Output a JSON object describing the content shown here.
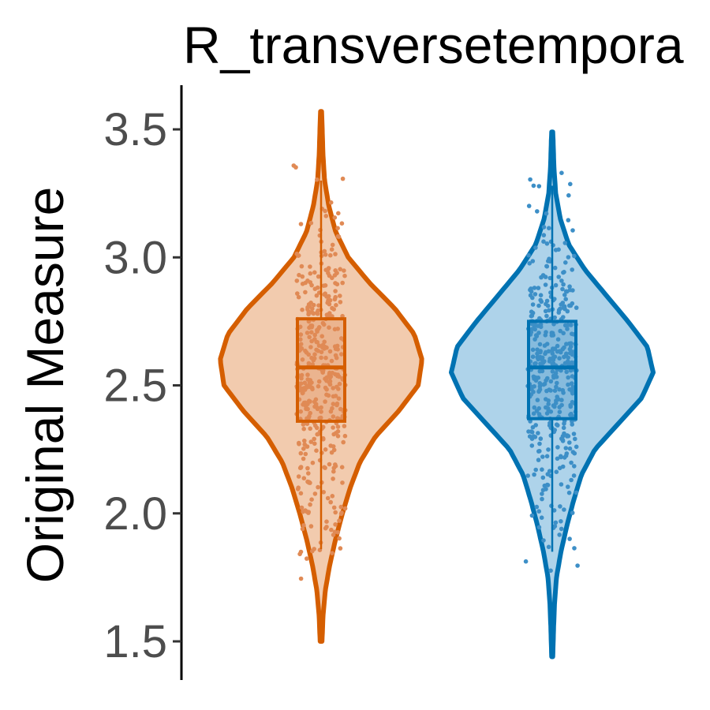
{
  "chart_data": {
    "type": "violin",
    "title": "R_transversetempora",
    "ylabel": "Original Measure",
    "xlabel": "",
    "ylim": [
      1.35,
      3.67
    ],
    "yticks": [
      1.5,
      2.0,
      2.5,
      3.0,
      3.5
    ],
    "ytick_labels": [
      "1.5",
      "2.0",
      "2.5",
      "3.0",
      "3.5"
    ],
    "grid": false,
    "legend": "none",
    "series": [
      {
        "color": "#D55E00",
        "fill": "#F2CBAE",
        "points_color": "#E08A55",
        "min": 1.5,
        "max": 3.57,
        "q1": 2.36,
        "median": 2.57,
        "q3": 2.76,
        "whisker_low": 1.86,
        "whisker_high": 3.3,
        "density": [
          [
            1.5,
            0.005
          ],
          [
            1.6,
            0.01
          ],
          [
            1.7,
            0.022
          ],
          [
            1.8,
            0.045
          ],
          [
            1.9,
            0.075
          ],
          [
            2.0,
            0.11
          ],
          [
            2.1,
            0.15
          ],
          [
            2.2,
            0.2
          ],
          [
            2.3,
            0.28
          ],
          [
            2.4,
            0.4
          ],
          [
            2.5,
            0.5
          ],
          [
            2.6,
            0.52
          ],
          [
            2.7,
            0.48
          ],
          [
            2.8,
            0.38
          ],
          [
            2.9,
            0.25
          ],
          [
            3.0,
            0.14
          ],
          [
            3.1,
            0.075
          ],
          [
            3.2,
            0.04
          ],
          [
            3.3,
            0.018
          ],
          [
            3.4,
            0.01
          ],
          [
            3.5,
            0.006
          ],
          [
            3.57,
            0.003
          ]
        ]
      },
      {
        "color": "#0072B2",
        "fill": "#AED3EA",
        "points_color": "#3D8FC7",
        "min": 1.44,
        "max": 3.49,
        "q1": 2.37,
        "median": 2.57,
        "q3": 2.75,
        "whisker_low": 1.85,
        "whisker_high": 3.28,
        "density": [
          [
            1.44,
            0.003
          ],
          [
            1.55,
            0.007
          ],
          [
            1.65,
            0.012
          ],
          [
            1.75,
            0.022
          ],
          [
            1.85,
            0.045
          ],
          [
            1.95,
            0.075
          ],
          [
            2.05,
            0.11
          ],
          [
            2.15,
            0.15
          ],
          [
            2.25,
            0.22
          ],
          [
            2.35,
            0.34
          ],
          [
            2.45,
            0.46
          ],
          [
            2.55,
            0.52
          ],
          [
            2.65,
            0.49
          ],
          [
            2.75,
            0.39
          ],
          [
            2.85,
            0.28
          ],
          [
            2.95,
            0.17
          ],
          [
            3.05,
            0.085
          ],
          [
            3.15,
            0.042
          ],
          [
            3.25,
            0.018
          ],
          [
            3.35,
            0.009
          ],
          [
            3.45,
            0.005
          ],
          [
            3.49,
            0.003
          ]
        ]
      }
    ]
  }
}
